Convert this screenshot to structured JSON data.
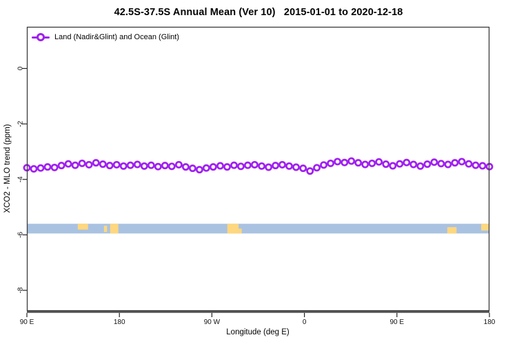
{
  "title": "42.5S-37.5S Annual Mean (Ver 10)   2015-01-01 to 2020-12-18",
  "legend": {
    "label": "Land (Nadir&Glint) and Ocean (Glint)"
  },
  "axes": {
    "x": {
      "label": "Longitude (deg E)",
      "ticks": [
        {
          "value": 90,
          "label": "90 E"
        },
        {
          "value": 180,
          "label": "180"
        },
        {
          "value": 270,
          "label": "90 W"
        },
        {
          "value": 360,
          "label": "0"
        },
        {
          "value": 450,
          "label": "90 E"
        },
        {
          "value": 540,
          "label": "180"
        }
      ]
    },
    "y": {
      "label": "XCO2 - MLO trend (ppm)",
      "ticks": [
        {
          "value": 0,
          "label": "0"
        },
        {
          "value": -2,
          "label": "-2"
        },
        {
          "value": -4,
          "label": "-4"
        },
        {
          "value": -6,
          "label": "-6"
        },
        {
          "value": -8,
          "label": "-8"
        }
      ]
    }
  },
  "colors": {
    "series": "#A020F0",
    "ocean_band": "#A9C2E1",
    "land_patch": "#FFD77E",
    "box": "#3a3a3a",
    "bottom_axis": "#555555",
    "tick_text": "#111111"
  },
  "chart_data": {
    "type": "line",
    "title": "42.5S-37.5S Annual Mean (Ver 10)   2015-01-01 to 2020-12-18",
    "xlabel": "Longitude (deg E)",
    "ylabel": "XCO2 - MLO trend (ppm)",
    "xlim": [
      90,
      540
    ],
    "ylim": [
      -8.75,
      1.5
    ],
    "grid": false,
    "legend_position": "topleft",
    "x": [
      90.0,
      96.7,
      103.4,
      110.1,
      116.9,
      123.6,
      130.3,
      137.0,
      143.7,
      150.4,
      157.2,
      163.9,
      170.6,
      177.3,
      184.0,
      190.7,
      197.5,
      204.2,
      210.9,
      217.6,
      224.3,
      231.0,
      237.8,
      244.5,
      251.2,
      257.9,
      264.6,
      271.3,
      278.1,
      284.8,
      291.5,
      298.2,
      304.9,
      311.6,
      318.4,
      325.1,
      331.8,
      338.5,
      345.2,
      351.9,
      358.7,
      365.4,
      372.1,
      378.8,
      385.5,
      392.2,
      399.0,
      405.7,
      412.4,
      419.1,
      425.8,
      432.5,
      439.3,
      446.0,
      452.7,
      459.4,
      466.1,
      472.8,
      479.6,
      486.3,
      493.0,
      499.7,
      506.4,
      513.1,
      519.9,
      526.6,
      533.3,
      540.0
    ],
    "series": [
      {
        "name": "Land (Nadir&Glint) and Ocean (Glint)",
        "values": [
          -3.58,
          -3.62,
          -3.59,
          -3.55,
          -3.57,
          -3.5,
          -3.44,
          -3.49,
          -3.42,
          -3.47,
          -3.4,
          -3.45,
          -3.5,
          -3.47,
          -3.52,
          -3.49,
          -3.46,
          -3.52,
          -3.49,
          -3.54,
          -3.5,
          -3.53,
          -3.47,
          -3.55,
          -3.6,
          -3.65,
          -3.59,
          -3.55,
          -3.51,
          -3.55,
          -3.49,
          -3.53,
          -3.49,
          -3.47,
          -3.52,
          -3.56,
          -3.5,
          -3.47,
          -3.52,
          -3.56,
          -3.6,
          -3.7,
          -3.58,
          -3.48,
          -3.42,
          -3.36,
          -3.39,
          -3.34,
          -3.4,
          -3.46,
          -3.42,
          -3.37,
          -3.45,
          -3.51,
          -3.44,
          -3.39,
          -3.46,
          -3.52,
          -3.45,
          -3.38,
          -3.43,
          -3.46,
          -3.4,
          -3.36,
          -3.44,
          -3.49,
          -3.51,
          -3.54
        ]
      }
    ],
    "map_band": {
      "description": "world land/ocean strip for latitude band",
      "value_top": -5.6,
      "value_bottom": -5.95,
      "land_segments_lon": [
        {
          "from": 139.5,
          "to": 149.5,
          "top": 0.0,
          "bottom": 0.6
        },
        {
          "from": 165.0,
          "to": 168.0,
          "top": 0.2,
          "bottom": 0.85
        },
        {
          "from": 171.0,
          "to": 179.0,
          "top": 0.0,
          "bottom": 1.0
        },
        {
          "from": 285.0,
          "to": 296.0,
          "top": 0.0,
          "bottom": 1.0
        },
        {
          "from": 296.0,
          "to": 299.0,
          "top": 0.5,
          "bottom": 1.0
        },
        {
          "from": 499.0,
          "to": 508.0,
          "top": 0.35,
          "bottom": 1.0
        },
        {
          "from": 532.0,
          "to": 540.0,
          "top": 0.0,
          "bottom": 0.7
        }
      ]
    }
  }
}
